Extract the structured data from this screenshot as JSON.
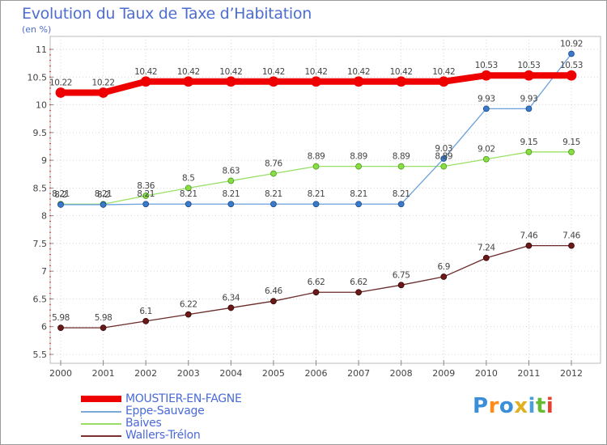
{
  "chart_data": {
    "type": "line",
    "title": "Evolution du Taux de Taxe d'Habitation",
    "ylabel": "(en %)",
    "x": [
      "2000",
      "2001",
      "2002",
      "2003",
      "2004",
      "2005",
      "2006",
      "2007",
      "2008",
      "2009",
      "2010",
      "2011",
      "2012"
    ],
    "ylim": [
      5.5,
      11
    ],
    "yticks": [
      "5.5",
      "6",
      "6.5",
      "7",
      "7.5",
      "8",
      "8.5",
      "9",
      "9.5",
      "10",
      "10.5",
      "11"
    ],
    "series": [
      {
        "name": "MOUSTIER-EN-FAGNE",
        "color": "#ee0000",
        "values": [
          10.22,
          10.22,
          10.42,
          10.42,
          10.42,
          10.42,
          10.42,
          10.42,
          10.42,
          10.42,
          10.53,
          10.53,
          10.53
        ]
      },
      {
        "name": "Eppe-Sauvage",
        "color": "#4a8ad0",
        "values": [
          8.2,
          8.2,
          8.21,
          8.21,
          8.21,
          8.21,
          8.21,
          8.21,
          8.21,
          9.03,
          9.93,
          9.93,
          10.92
        ]
      },
      {
        "name": "Baives",
        "color": "#88dd55",
        "values": [
          8.21,
          8.21,
          8.36,
          8.5,
          8.63,
          8.76,
          8.89,
          8.89,
          8.89,
          8.89,
          9.02,
          9.15,
          9.15
        ]
      },
      {
        "name": "Wallers-Trélon",
        "color": "#6a1818",
        "values": [
          5.98,
          5.98,
          6.1,
          6.22,
          6.34,
          6.46,
          6.62,
          6.62,
          6.75,
          6.9,
          7.24,
          7.46,
          7.46
        ]
      }
    ],
    "labels": {
      "MOUSTIER-EN-FAGNE": [
        "10.22",
        "10.22",
        "10.42",
        "10.42",
        "10.42",
        "10.42",
        "10.42",
        "10.42",
        "10.42",
        "10.42",
        "10.53",
        "10.53",
        "10.53"
      ],
      "Eppe-Sauvage": [
        "8.2",
        "8.2",
        "8.21",
        "8.21",
        "8.21",
        "8.21",
        "8.21",
        "8.21",
        "8.21",
        "9.03",
        "9.93",
        "9.93",
        "10.92"
      ],
      "Baives": [
        "8.21",
        "8.21",
        "8.36",
        "8.5",
        "8.63",
        "8.76",
        "8.89",
        "8.89",
        "8.89",
        "8.89",
        "9.02",
        "9.15",
        "9.15"
      ],
      "Wallers-Trélon": [
        "5.98",
        "5.98",
        "6.1",
        "6.22",
        "6.34",
        "6.46",
        "6.62",
        "6.62",
        "6.75",
        "6.9",
        "7.24",
        "7.46",
        "7.46"
      ]
    },
    "legend": "bottom-left"
  },
  "header": {
    "title": "Evolution du Taux de Taxe d’Habitation",
    "subtitle": "(en %)"
  },
  "legend": {
    "items": [
      {
        "label": "MOUSTIER-EN-FAGNE",
        "color": "#ee0000"
      },
      {
        "label": "Eppe-Sauvage",
        "color": "#7aa8d8"
      },
      {
        "label": "Baives",
        "color": "#99dd66"
      },
      {
        "label": "Wallers-Trélon",
        "color": "#7a3030"
      }
    ]
  },
  "logo": {
    "letters": [
      "P",
      "r",
      "o",
      "x",
      "i",
      "t",
      "i"
    ],
    "colors": [
      "#3a8fd8",
      "#ff8c1a",
      "#3a8fd8",
      "#e0b020",
      "#4a9fe0",
      "#66bb33",
      "#e84030"
    ]
  }
}
